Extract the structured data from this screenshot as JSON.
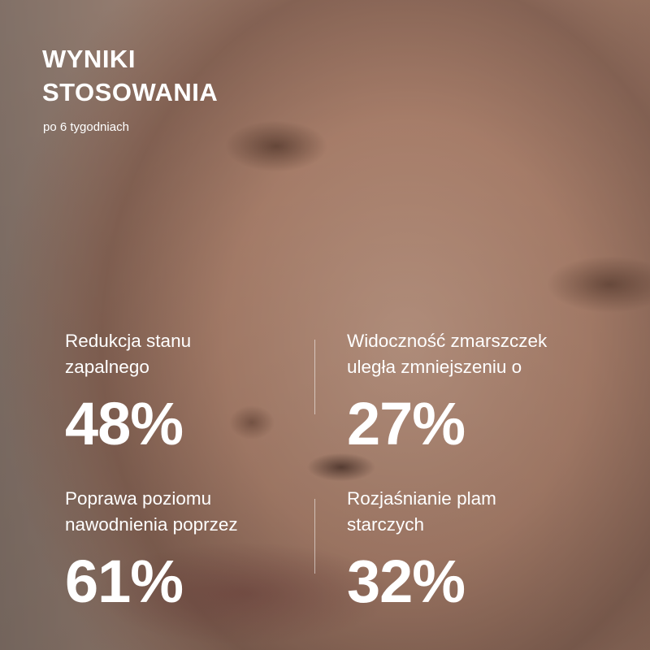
{
  "header": {
    "title_line1": "WYNIKI",
    "title_line2": "STOSOWANIA",
    "subtitle": "po 6 tygodniach"
  },
  "stats": [
    {
      "label_line1": "Redukcja stanu",
      "label_line2": "zapalnego",
      "value": "48%"
    },
    {
      "label_line1": "Widoczność zmarszczek",
      "label_line2": "uległa zmniejszeniu o",
      "value": "27%"
    },
    {
      "label_line1": "Poprawa poziomu",
      "label_line2": "nawodnienia poprzez",
      "value": "61%"
    },
    {
      "label_line1": "Rozjaśnianie plam",
      "label_line2": "starczych",
      "value": "32%"
    }
  ]
}
